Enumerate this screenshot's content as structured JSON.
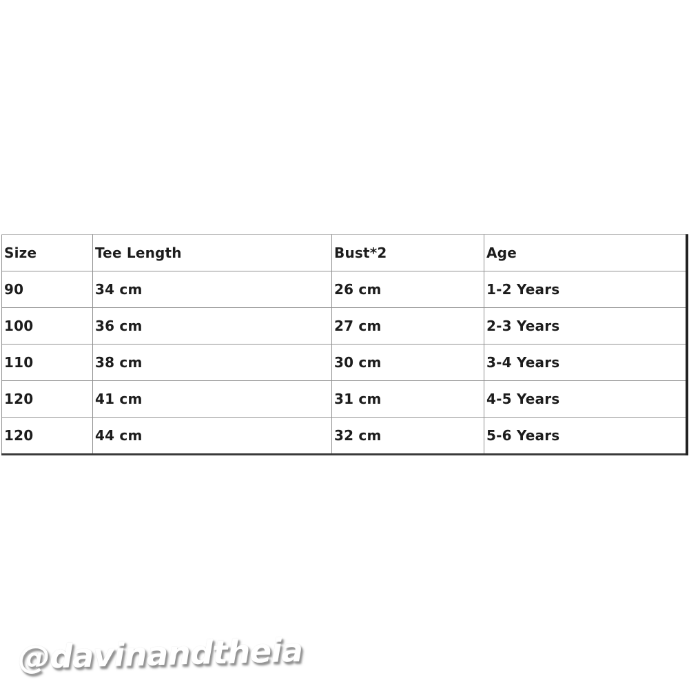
{
  "table": {
    "headers": [
      "Size",
      "Tee Length",
      "Bust*2",
      "Age"
    ],
    "rows": [
      {
        "size": "90",
        "tee_length": "34 cm",
        "bust": "26 cm",
        "age": "1-2 Years"
      },
      {
        "size": "100",
        "tee_length": "36 cm",
        "bust": "27 cm",
        "age": "2-3 Years"
      },
      {
        "size": "110",
        "tee_length": "38 cm",
        "bust": "30 cm",
        "age": "3-4 Years"
      },
      {
        "size": "120",
        "tee_length": "41 cm",
        "bust": "31 cm",
        "age": "4-5 Years"
      },
      {
        "size": "120",
        "tee_length": "44 cm",
        "bust": "32 cm",
        "age": "5-6 Years"
      }
    ]
  },
  "watermark": {
    "text": "@davinandtheia"
  },
  "colors": {
    "background": "#ffffff",
    "text": "#1c1c1c",
    "grid_line": "#919191",
    "outer_border_dark": "#222222",
    "watermark_fill": "#ffffff",
    "watermark_shadow": "#8c8c8c"
  }
}
